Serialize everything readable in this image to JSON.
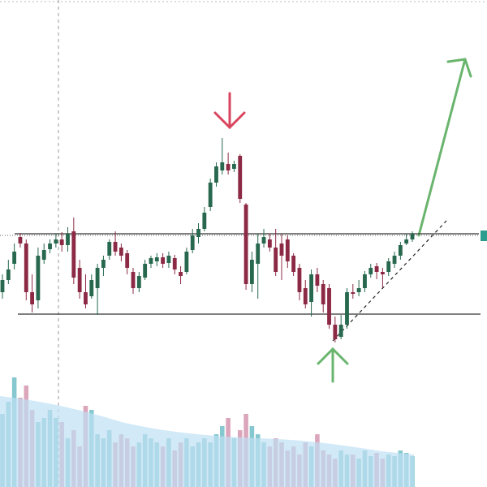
{
  "chart_data": {
    "type": "candlestick",
    "up_color": "#27684f",
    "down_color": "#8c2944",
    "volume_up_color": "#86c8cf",
    "volume_down_color": "#dba5bb",
    "level_color": "#333333",
    "ylim": [
      0,
      600
    ],
    "vlim": [
      0,
      600
    ],
    "levels": [
      312,
      213
    ],
    "open": [
      240,
      255,
      275,
      308,
      300,
      240,
      230,
      280,
      293,
      300,
      305,
      298,
      315,
      270,
      240,
      235,
      245,
      270,
      285,
      302,
      295,
      288,
      265,
      245,
      258,
      275,
      278,
      283,
      276,
      282,
      265,
      265,
      292,
      308,
      318,
      345,
      375,
      390,
      398,
      392,
      408,
      348,
      250,
      275,
      300,
      305,
      295,
      300,
      305,
      285,
      270,
      245,
      228,
      262,
      250,
      245,
      200,
      185,
      200,
      240,
      240,
      245,
      262,
      272,
      265,
      265,
      275,
      285,
      300,
      305
    ],
    "high": [
      262,
      280,
      300,
      313,
      305,
      262,
      295,
      300,
      305,
      312,
      314,
      320,
      332,
      280,
      262,
      262,
      275,
      285,
      305,
      315,
      300,
      292,
      270,
      265,
      280,
      285,
      288,
      288,
      290,
      286,
      272,
      295,
      318,
      325,
      345,
      380,
      400,
      430,
      412,
      402,
      410,
      350,
      290,
      312,
      318,
      312,
      318,
      312,
      310,
      288,
      275,
      255,
      268,
      270,
      255,
      250,
      210,
      212,
      245,
      250,
      255,
      266,
      275,
      276,
      270,
      282,
      290,
      302,
      312,
      315
    ],
    "low": [
      232,
      250,
      268,
      295,
      230,
      215,
      220,
      275,
      288,
      295,
      290,
      290,
      250,
      232,
      220,
      232,
      212,
      260,
      280,
      285,
      278,
      262,
      238,
      240,
      255,
      270,
      272,
      270,
      270,
      262,
      250,
      262,
      288,
      300,
      315,
      340,
      370,
      385,
      385,
      388,
      350,
      243,
      240,
      232,
      295,
      290,
      260,
      255,
      270,
      260,
      230,
      220,
      210,
      240,
      215,
      195,
      178,
      182,
      195,
      232,
      235,
      240,
      258,
      256,
      245,
      260,
      270,
      280,
      298,
      302
    ],
    "close": [
      255,
      268,
      290,
      300,
      240,
      225,
      285,
      292,
      300,
      305,
      298,
      312,
      258,
      240,
      225,
      255,
      270,
      280,
      302,
      290,
      285,
      270,
      245,
      260,
      275,
      282,
      283,
      275,
      285,
      268,
      260,
      290,
      310,
      318,
      338,
      375,
      395,
      400,
      390,
      398,
      355,
      250,
      280,
      300,
      308,
      295,
      265,
      285,
      278,
      265,
      240,
      225,
      262,
      248,
      225,
      200,
      182,
      200,
      240,
      238,
      245,
      262,
      270,
      265,
      262,
      278,
      285,
      298,
      305,
      312
    ],
    "volume": [
      90,
      105,
      135,
      110,
      125,
      95,
      80,
      85,
      95,
      85,
      80,
      60,
      70,
      50,
      100,
      95,
      65,
      60,
      70,
      55,
      65,
      60,
      50,
      55,
      65,
      60,
      55,
      50,
      60,
      45,
      55,
      60,
      50,
      55,
      60,
      55,
      65,
      75,
      85,
      60,
      70,
      90,
      75,
      65,
      55,
      50,
      60,
      55,
      45,
      50,
      40,
      55,
      50,
      65,
      45,
      40,
      35,
      45,
      40,
      40,
      35,
      45,
      38,
      42,
      35,
      40,
      38,
      45,
      42,
      38
    ]
  }
}
